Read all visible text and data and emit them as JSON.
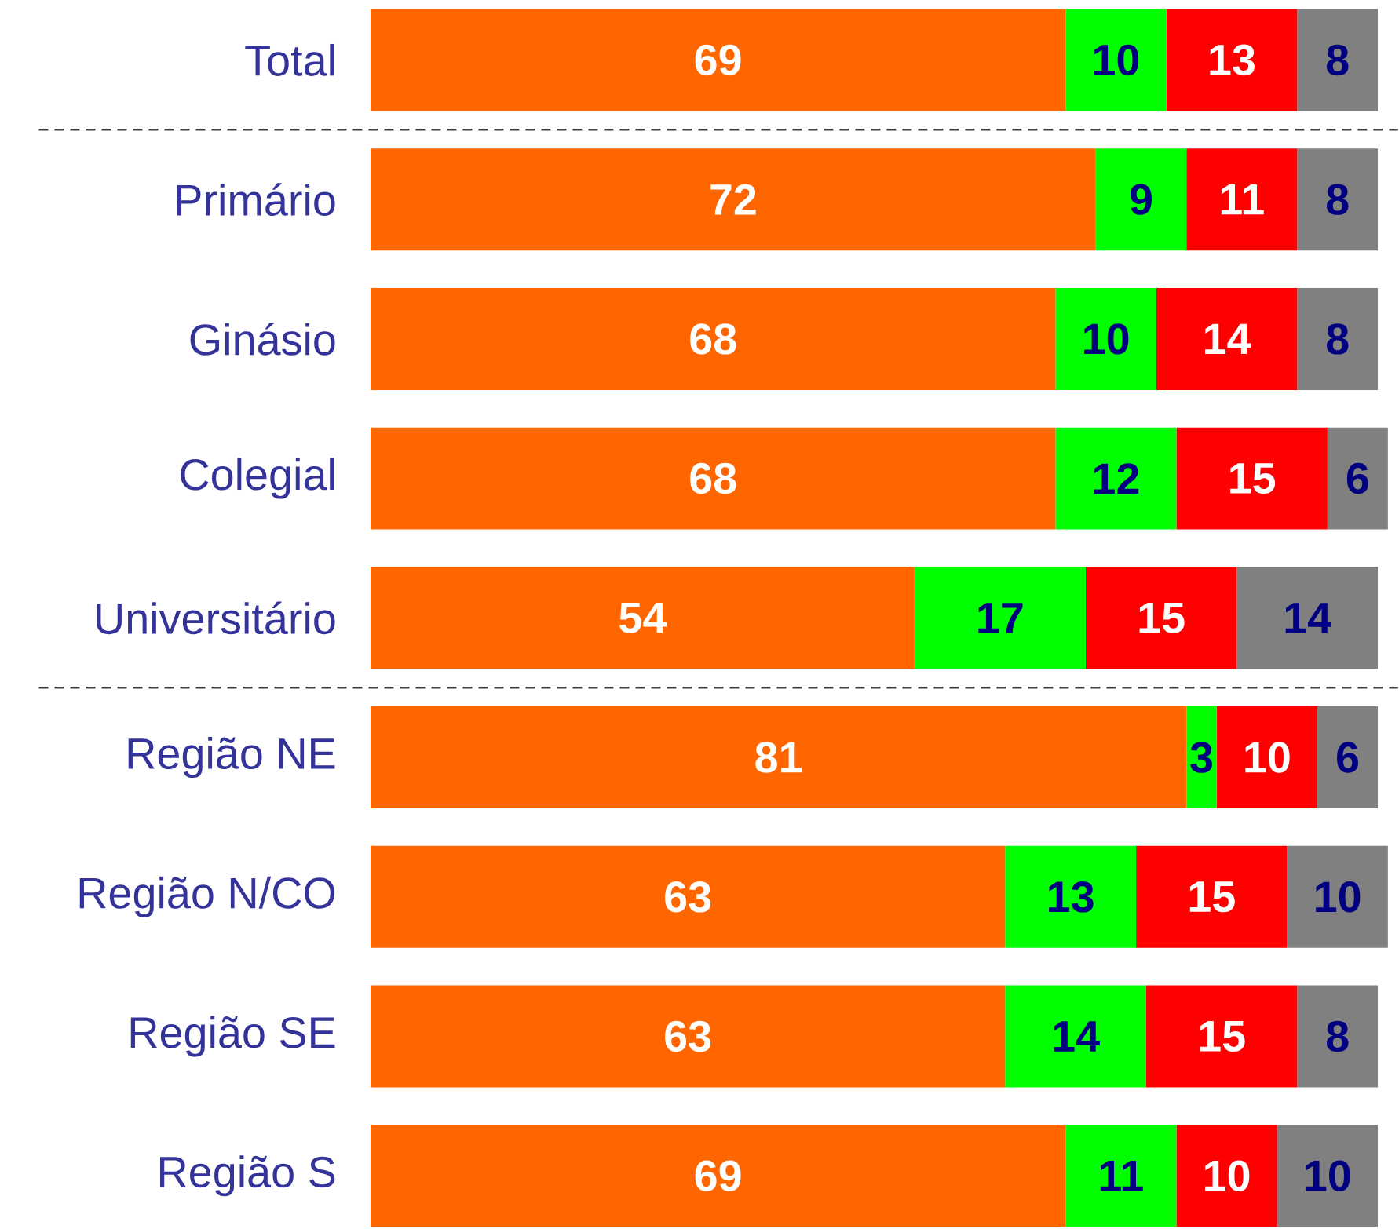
{
  "chart_data": {
    "type": "bar",
    "orientation": "horizontal",
    "stacked": true,
    "data_labels": true,
    "categories": [
      "Total",
      "Primário",
      "Ginásio",
      "Colegial",
      "Universitário",
      "Região NE",
      "Região N/CO",
      "Região SE",
      "Região S"
    ],
    "series": [
      {
        "color": "#ff6600",
        "values": [
          69,
          72,
          68,
          68,
          54,
          81,
          63,
          63,
          69
        ]
      },
      {
        "color": "#00ff00",
        "values": [
          10,
          9,
          10,
          12,
          17,
          3,
          13,
          14,
          11
        ]
      },
      {
        "color": "#ff0000",
        "values": [
          13,
          11,
          14,
          15,
          15,
          10,
          15,
          15,
          10
        ]
      },
      {
        "color": "#808080",
        "values": [
          8,
          8,
          8,
          6,
          14,
          6,
          10,
          8,
          10
        ]
      }
    ]
  }
}
